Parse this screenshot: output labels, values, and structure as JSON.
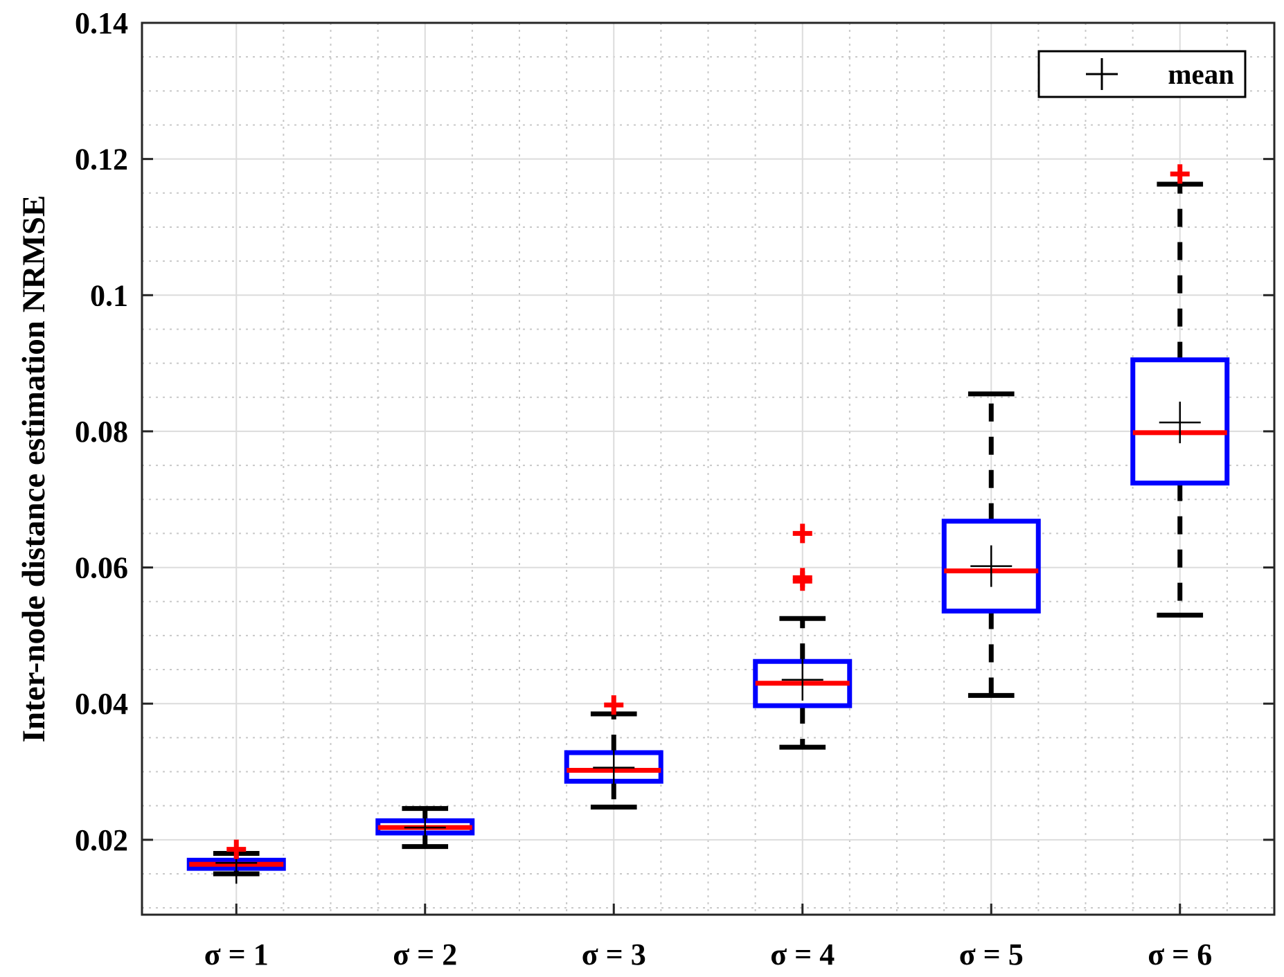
{
  "chart_data": {
    "type": "box",
    "ylabel": "Inter-node distance estimation NRMSE",
    "xlabel": "",
    "ylim": [
      0.009,
      0.14
    ],
    "yticks": [
      0.02,
      0.04,
      0.06,
      0.08,
      0.1,
      0.12,
      0.14
    ],
    "ytick_labels": [
      "0.02",
      "0.04",
      "0.06",
      "0.08",
      "0.1",
      "0.12",
      "0.14"
    ],
    "categories": [
      "σ = 1",
      "σ = 2",
      "σ = 3",
      "σ = 4",
      "σ = 5",
      "σ = 6"
    ],
    "grid": true,
    "minor_grid": true,
    "legend": {
      "position": "top-right",
      "entries": [
        "mean"
      ]
    },
    "colors": {
      "box": "#0000ff",
      "median": "#ff0000",
      "whisker": "#000000",
      "outlier": "#ff0000",
      "mean": "#000000",
      "grid": "#dcdcdc"
    },
    "boxes": [
      {
        "category": "σ = 1",
        "whisker_low": 0.015,
        "q1": 0.0158,
        "median": 0.0164,
        "q3": 0.017,
        "whisker_high": 0.018,
        "mean": 0.0166,
        "outliers": [
          0.0186
        ]
      },
      {
        "category": "σ = 2",
        "whisker_low": 0.019,
        "q1": 0.021,
        "median": 0.0218,
        "q3": 0.0228,
        "whisker_high": 0.0246,
        "mean": 0.0218,
        "outliers": []
      },
      {
        "category": "σ = 3",
        "whisker_low": 0.0248,
        "q1": 0.0286,
        "median": 0.0302,
        "q3": 0.0328,
        "whisker_high": 0.0385,
        "mean": 0.0306,
        "outliers": [
          0.0398
        ]
      },
      {
        "category": "σ = 4",
        "whisker_low": 0.0336,
        "q1": 0.0397,
        "median": 0.043,
        "q3": 0.0462,
        "whisker_high": 0.0525,
        "mean": 0.0435,
        "outliers": [
          0.058,
          0.0585,
          0.065
        ]
      },
      {
        "category": "σ = 5",
        "whisker_low": 0.0412,
        "q1": 0.0536,
        "median": 0.0595,
        "q3": 0.0668,
        "whisker_high": 0.0855,
        "mean": 0.0602,
        "outliers": []
      },
      {
        "category": "σ = 6",
        "whisker_low": 0.053,
        "q1": 0.0724,
        "median": 0.0798,
        "q3": 0.0905,
        "whisker_high": 0.1163,
        "mean": 0.0813,
        "outliers": [
          0.1178
        ]
      }
    ]
  }
}
